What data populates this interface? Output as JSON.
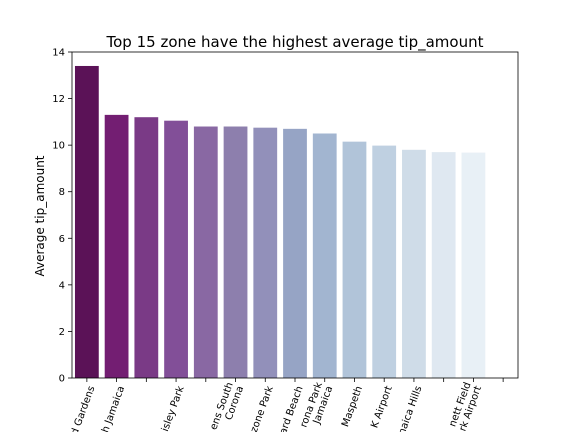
{
  "chart_data": {
    "type": "bar",
    "title": "Top 15 zone have the highest average tip_amount",
    "xlabel": "",
    "ylabel": "Average tip_amount",
    "ylim": [
      0,
      14
    ],
    "yticks": [
      0,
      2,
      4,
      6,
      8,
      10,
      12,
      14
    ],
    "grid": false,
    "legend": "none",
    "categories": [
      [
        "d Gardens"
      ],
      [
        "h Jamaica"
      ],
      [
        "isley Park"
      ],
      [
        "ens South",
        "Corona"
      ],
      [
        "zone Park"
      ],
      [
        "ard Beach"
      ],
      [
        "rona Park",
        "Jamaica"
      ],
      [
        "Maspeth"
      ],
      [
        "K Airport"
      ],
      [
        "naica Hills"
      ],
      [
        "nett Field",
        "rk Airport"
      ]
    ],
    "bars": [
      {
        "label_index": 0,
        "value": 13.4,
        "color": "#5b1257"
      },
      {
        "label_index": 1,
        "value": 11.3,
        "color": "#731e72"
      },
      {
        "label_index": null,
        "value": 11.2,
        "color": "#7a3a86"
      },
      {
        "label_index": 2,
        "value": 11.05,
        "color": "#824f98"
      },
      {
        "label_index": null,
        "value": 10.8,
        "color": "#8968a3"
      },
      {
        "label_index": 3,
        "value": 10.8,
        "color": "#8d7fad"
      },
      {
        "label_index": 4,
        "value": 10.75,
        "color": "#9290ba"
      },
      {
        "label_index": 5,
        "value": 10.7,
        "color": "#96a4c5"
      },
      {
        "label_index": 6,
        "value": 10.5,
        "color": "#a2b5d0"
      },
      {
        "label_index": 7,
        "value": 10.15,
        "color": "#b1c4d9"
      },
      {
        "label_index": 8,
        "value": 9.98,
        "color": "#bfd0e1"
      },
      {
        "label_index": 9,
        "value": 9.8,
        "color": "#cfdce8"
      },
      {
        "label_index": null,
        "value": 9.7,
        "color": "#dfe8f1"
      },
      {
        "label_index": 10,
        "value": 9.68,
        "color": "#e8f0f6"
      },
      {
        "label_index": null,
        "value": 0,
        "color": "#f3f7fb"
      }
    ]
  }
}
